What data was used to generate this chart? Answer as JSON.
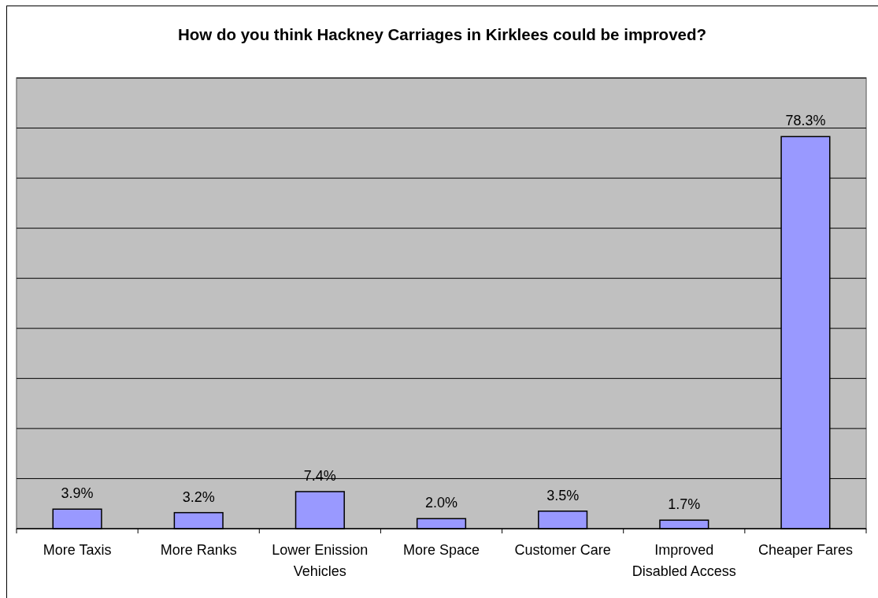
{
  "chart_data": {
    "type": "bar",
    "title": "How do you think Hackney Carriages in Kirklees could be improved?",
    "categories": [
      "More Taxis",
      "More Ranks",
      "Lower Enission Vehicles",
      "More Space",
      "Customer Care",
      "Improved Disabled Access",
      "Cheaper Fares"
    ],
    "values": [
      3.9,
      3.2,
      7.4,
      2.0,
      3.5,
      1.7,
      78.3
    ],
    "value_labels": [
      "3.9%",
      "3.2%",
      "7.4%",
      "2.0%",
      "3.5%",
      "1.7%",
      "78.3%"
    ],
    "color": "#9999ff",
    "ylim": [
      0,
      90
    ],
    "yticks": [
      {
        "value": 0,
        "label": null
      },
      {
        "value": 10,
        "label": null
      },
      {
        "value": 20,
        "label": null
      },
      {
        "value": 30,
        "label": null
      },
      {
        "value": 40,
        "label": null
      },
      {
        "value": 50,
        "label": null
      },
      {
        "value": 60,
        "label": null
      },
      {
        "value": 70,
        "label": null
      },
      {
        "value": 80,
        "label": null
      },
      {
        "value": 90,
        "label": null
      }
    ],
    "grid": "y",
    "tick_labels": "x"
  }
}
